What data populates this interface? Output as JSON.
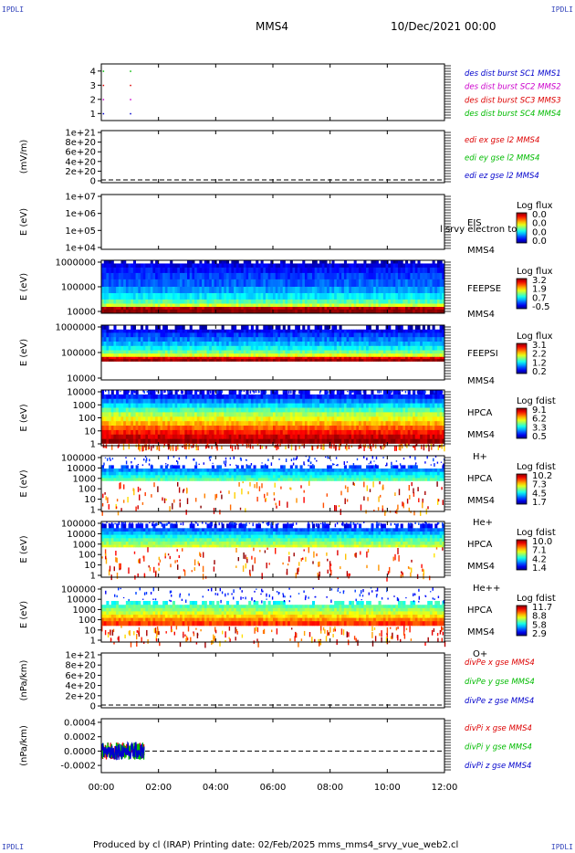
{
  "page": {
    "corner_label": "IPDLI",
    "spacecraft": "MMS4",
    "date": "10/Dec/2021 00:00",
    "footer": "Produced by cl (IRAP)   Printing date: 02/Feb/2025   mms_mms4_srvy_vue_web2.cl"
  },
  "chart_data": {
    "type": "spectrogram-stack",
    "x": {
      "ticks": [
        "00:00",
        "02:00",
        "04:00",
        "06:00",
        "08:00",
        "10:00",
        "12:00"
      ],
      "range_hours": [
        0,
        12
      ]
    },
    "panels": [
      {
        "id": "burst",
        "kind": "burst",
        "ylabel": "",
        "yticks": [
          "4",
          "3",
          "2",
          "1"
        ],
        "yrange": [
          0.5,
          4.5
        ],
        "legend": [
          {
            "text": "des dist burst SC1 MMS1",
            "color": "#0000cc"
          },
          {
            "text": "des dist burst SC2 MMS2",
            "color": "#cc00cc"
          },
          {
            "text": "des dist burst SC3 MMS3",
            "color": "#dd0000"
          },
          {
            "text": "des dist burst SC4 MMS4",
            "color": "#00bb00"
          }
        ],
        "bursts": [
          {
            "sc": 4,
            "t": [
              0.05,
              1.0
            ],
            "color": "#00bb00"
          },
          {
            "sc": 3,
            "t": [
              0.05,
              1.0
            ],
            "color": "#dd0000"
          },
          {
            "sc": 2,
            "t": [
              0.05,
              1.0
            ],
            "color": "#cc00cc"
          },
          {
            "sc": 1,
            "t": [
              0.05,
              1.0
            ],
            "color": "#0000cc"
          }
        ]
      },
      {
        "id": "edi",
        "kind": "line",
        "ylabel": "(mV/m)",
        "yticks": [
          "1e+21",
          "8e+20",
          "6e+20",
          "4e+20",
          "2e+20",
          "0"
        ],
        "yrange": [
          0,
          1e+21
        ],
        "zero_line": true,
        "legend": [
          {
            "text": "edi ex gse l2 MMS4",
            "color": "#dd0000"
          },
          {
            "text": "edi ey gse l2 MMS4",
            "color": "#00bb00"
          },
          {
            "text": "edi ez gse l2 MMS4",
            "color": "#0000cc"
          }
        ]
      },
      {
        "id": "eis",
        "kind": "spectrogram",
        "ylabel": "E (eV)",
        "yticks": [
          "1e+07",
          "1e+06",
          "1e+05",
          "1e+04"
        ],
        "side_labels": [
          "EIS",
          "MMS4"
        ],
        "overlay": "l srvy electron to",
        "colorbar": {
          "title": "Log flux",
          "ticks": [
            "0.0",
            "0.0",
            "0.0",
            "0.0"
          ]
        },
        "data": null
      },
      {
        "id": "feepse",
        "kind": "spectrogram",
        "ylabel": "E (eV)",
        "yticks": [
          "1000000",
          "100000",
          "10000"
        ],
        "side_labels": [
          "FEEPSE",
          "MMS4"
        ],
        "colorbar": {
          "title": "Log flux",
          "ticks": [
            "3.2",
            "1.9",
            "0.7",
            "-0.5"
          ]
        },
        "data": {
          "t": [
            0,
            12
          ],
          "bands": [
            0.0,
            0.06,
            0.14,
            0.24,
            0.36,
            0.5,
            0.62,
            0.74,
            0.82,
            0.88,
            0.93,
            1.0
          ],
          "levels": [
            0.05,
            0.1,
            0.14,
            0.18,
            0.22,
            0.28,
            0.36,
            0.46,
            0.58,
            0.95,
            1.0
          ]
        }
      },
      {
        "id": "feepsi",
        "kind": "spectrogram",
        "ylabel": "E (eV)",
        "yticks": [
          "1000000",
          "100000",
          "10000"
        ],
        "side_labels": [
          "FEEPSI",
          "MMS4"
        ],
        "colorbar": {
          "title": "Log flux",
          "ticks": [
            "3.1",
            "2.2",
            "1.2",
            "0.2"
          ]
        },
        "data": {
          "t": [
            0,
            12
          ],
          "bands": [
            0.0,
            0.08,
            0.14,
            0.22,
            0.3,
            0.38,
            0.46,
            0.52,
            0.58,
            0.62,
            0.66
          ],
          "levels": [
            0.06,
            0.12,
            0.18,
            0.24,
            0.3,
            0.38,
            0.48,
            0.6,
            0.9,
            0.98
          ]
        }
      },
      {
        "id": "hpca_h",
        "kind": "spectrogram",
        "ylabel": "E (eV)",
        "yticks": [
          "10000",
          "1000",
          "100",
          "10",
          "1"
        ],
        "side_labels": [
          "HPCA",
          "MMS4",
          "H+"
        ],
        "colorbar": {
          "title": "Log fdist",
          "ticks": [
            "9.1",
            "6.2",
            "3.3",
            "0.5"
          ]
        },
        "data": {
          "t": [
            0,
            12
          ],
          "bands": [
            0.0,
            0.08,
            0.16,
            0.24,
            0.32,
            0.4,
            0.48,
            0.56,
            0.64,
            0.72,
            0.8,
            0.88,
            0.96
          ],
          "levels": [
            0.1,
            0.15,
            0.25,
            0.35,
            0.45,
            0.55,
            0.62,
            0.7,
            0.78,
            0.86,
            0.92,
            0.98
          ]
        }
      },
      {
        "id": "hpca_he",
        "kind": "spectrogram",
        "ylabel": "E (eV)",
        "yticks": [
          "100000",
          "10000",
          "1000",
          "100",
          "10",
          "1"
        ],
        "side_labels": [
          "HPCA",
          "MMS4",
          "He+"
        ],
        "colorbar": {
          "title": "Log fdist",
          "ticks": [
            "10.2",
            "7.3",
            "4.5",
            "1.7"
          ]
        },
        "data": {
          "t": [
            0,
            12
          ],
          "bands": [
            0.17,
            0.23,
            0.29,
            0.35,
            0.4,
            0.45
          ],
          "levels": [
            0.18,
            0.26,
            0.34,
            0.4,
            0.46
          ]
        }
      },
      {
        "id": "hpca_hepp",
        "kind": "spectrogram",
        "ylabel": "E (eV)",
        "yticks": [
          "100000",
          "10000",
          "1000",
          "100",
          "10",
          "1"
        ],
        "side_labels": [
          "HPCA",
          "MMS4",
          "He++"
        ],
        "colorbar": {
          "title": "Log fdist",
          "ticks": [
            "10.0",
            "7.1",
            "4.2",
            "1.4"
          ]
        },
        "data": {
          "t": [
            0,
            12
          ],
          "bands": [
            0.04,
            0.12,
            0.18,
            0.24,
            0.3,
            0.36,
            0.42,
            0.46
          ],
          "levels": [
            0.12,
            0.22,
            0.3,
            0.38,
            0.46,
            0.52,
            0.58
          ]
        }
      },
      {
        "id": "hpca_o",
        "kind": "spectrogram",
        "ylabel": "E (eV)",
        "yticks": [
          "100000",
          "10000",
          "1000",
          "100",
          "10",
          "1"
        ],
        "side_labels": [
          "HPCA",
          "MMS4",
          "O+"
        ],
        "colorbar": {
          "title": "Log fdist",
          "ticks": [
            "11.7",
            "8.8",
            "5.8",
            "2.9"
          ]
        },
        "data": {
          "t": [
            0,
            12
          ],
          "bands": [
            0.25,
            0.32,
            0.38,
            0.44,
            0.5,
            0.56,
            0.62,
            0.7
          ],
          "levels": [
            0.4,
            0.46,
            0.52,
            0.58,
            0.66,
            0.74,
            0.82
          ]
        }
      },
      {
        "id": "divpe",
        "kind": "line",
        "ylabel": "(nPa/km)",
        "yticks": [
          "1e+21",
          "8e+20",
          "6e+20",
          "4e+20",
          "2e+20",
          "0"
        ],
        "yrange": [
          0,
          1e+21
        ],
        "zero_line": true,
        "legend": [
          {
            "text": "divPe x gse MMS4",
            "color": "#dd0000"
          },
          {
            "text": "divPe y gse MMS4",
            "color": "#00bb00"
          },
          {
            "text": "divPe z gse MMS4",
            "color": "#0000cc"
          }
        ]
      },
      {
        "id": "divpi",
        "kind": "line",
        "ylabel": "(nPa/km)",
        "yticks": [
          "0.0004",
          "0.0002",
          "0.0000",
          "-0.0002"
        ],
        "yrange": [
          -0.0003,
          0.00045
        ],
        "zero_line": true,
        "noisy_segment": {
          "t": [
            0.0,
            1.5
          ],
          "amplitude": 0.00012
        },
        "legend": [
          {
            "text": "divPi x gse MMS4",
            "color": "#dd0000"
          },
          {
            "text": "divPi y gse MMS4",
            "color": "#00bb00"
          },
          {
            "text": "divPi z gse MMS4",
            "color": "#0000cc"
          }
        ]
      }
    ]
  }
}
